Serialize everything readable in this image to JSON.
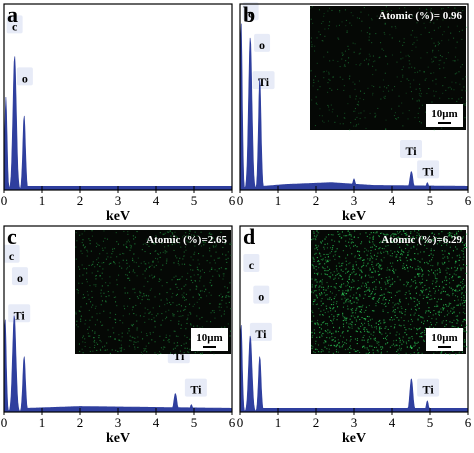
{
  "chart_data": [
    {
      "type": "area",
      "panel_label": "a",
      "xlabel": "keV",
      "xlim": [
        0,
        6
      ],
      "xticks": [
        "0",
        "1",
        "2",
        "3",
        "4",
        "5",
        "6"
      ],
      "peaks": [
        {
          "x": 0.05,
          "y": 0.5,
          "w": 0.06
        },
        {
          "x": 0.28,
          "y": 0.72,
          "w": 0.09
        },
        {
          "x": 0.53,
          "y": 0.4,
          "w": 0.07
        }
      ],
      "baseline": [
        [
          0.6,
          0.02
        ],
        [
          6.0,
          0.02
        ]
      ],
      "peak_labels": [
        {
          "text": "c",
          "x": 0.28,
          "y": 0.88
        },
        {
          "text": "o",
          "x": 0.55,
          "y": 0.6
        }
      ]
    },
    {
      "type": "area",
      "panel_label": "b",
      "xlabel": "keV",
      "xlim": [
        0,
        6
      ],
      "xticks": [
        "0",
        "1",
        "2",
        "3",
        "4",
        "5",
        "6"
      ],
      "peaks": [
        {
          "x": 0.03,
          "y": 0.9,
          "w": 0.06
        },
        {
          "x": 0.27,
          "y": 0.82,
          "w": 0.09
        },
        {
          "x": 0.52,
          "y": 0.6,
          "w": 0.07
        },
        {
          "x": 3.0,
          "y": 0.06,
          "w": 0.07
        },
        {
          "x": 4.51,
          "y": 0.1,
          "w": 0.08
        },
        {
          "x": 4.93,
          "y": 0.04,
          "w": 0.06
        }
      ],
      "baseline": [
        [
          0.6,
          0.02
        ],
        [
          1.2,
          0.03
        ],
        [
          2.4,
          0.04
        ],
        [
          3.5,
          0.025
        ],
        [
          6.0,
          0.02
        ]
      ],
      "peak_labels": [
        {
          "text": "c",
          "x": 0.28,
          "y": 0.95
        },
        {
          "text": "o",
          "x": 0.58,
          "y": 0.78
        },
        {
          "text": "Ti",
          "x": 0.62,
          "y": 0.58
        },
        {
          "text": "Ti",
          "x": 4.5,
          "y": 0.21
        },
        {
          "text": "Ti",
          "x": 4.95,
          "y": 0.1
        }
      ],
      "inset": {
        "title": "Atomic (%)= 0.96",
        "scalebar": "10μm",
        "density": 0.96
      }
    },
    {
      "type": "area",
      "panel_label": "c",
      "xlabel": "keV",
      "xlim": [
        0,
        6
      ],
      "xticks": [
        "0",
        "1",
        "2",
        "3",
        "4",
        "5",
        "6"
      ],
      "peaks": [
        {
          "x": 0.03,
          "y": 0.5,
          "w": 0.06
        },
        {
          "x": 0.27,
          "y": 0.52,
          "w": 0.09
        },
        {
          "x": 0.53,
          "y": 0.3,
          "w": 0.07
        },
        {
          "x": 4.51,
          "y": 0.1,
          "w": 0.08
        },
        {
          "x": 4.93,
          "y": 0.04,
          "w": 0.06
        }
      ],
      "baseline": [
        [
          0.6,
          0.02
        ],
        [
          2.0,
          0.03
        ],
        [
          6.0,
          0.02
        ]
      ],
      "peak_labels": [
        {
          "text": "c",
          "x": 0.2,
          "y": 0.84
        },
        {
          "text": "o",
          "x": 0.42,
          "y": 0.72
        },
        {
          "text": "Ti",
          "x": 0.4,
          "y": 0.52
        },
        {
          "text": "Ti",
          "x": 4.6,
          "y": 0.3
        },
        {
          "text": "Ti",
          "x": 5.05,
          "y": 0.12
        }
      ],
      "inset": {
        "title": "Atomic (%)=2.65",
        "scalebar": "10μm",
        "density": 2.65
      }
    },
    {
      "type": "area",
      "panel_label": "d",
      "xlabel": "keV",
      "xlim": [
        0,
        6
      ],
      "xticks": [
        "0",
        "1",
        "2",
        "3",
        "4",
        "5",
        "6"
      ],
      "peaks": [
        {
          "x": 0.03,
          "y": 0.47,
          "w": 0.06
        },
        {
          "x": 0.27,
          "y": 0.41,
          "w": 0.09
        },
        {
          "x": 0.52,
          "y": 0.3,
          "w": 0.07
        },
        {
          "x": 4.51,
          "y": 0.18,
          "w": 0.08
        },
        {
          "x": 4.93,
          "y": 0.06,
          "w": 0.06
        }
      ],
      "baseline": [
        [
          0.6,
          0.02
        ],
        [
          6.0,
          0.02
        ]
      ],
      "peak_labels": [
        {
          "text": "c",
          "x": 0.3,
          "y": 0.79
        },
        {
          "text": "o",
          "x": 0.56,
          "y": 0.62
        },
        {
          "text": "Ti",
          "x": 0.55,
          "y": 0.42
        },
        {
          "text": "Ti",
          "x": 4.45,
          "y": 0.39
        },
        {
          "text": "Ti",
          "x": 4.95,
          "y": 0.12
        }
      ],
      "inset": {
        "title": "Atomic (%)=6.29",
        "scalebar": "10μm",
        "density": 6.29
      }
    }
  ],
  "colors": {
    "spectrum": "#2f3f9e",
    "label_box": "#e7ebf7",
    "inset_bg": "#050805",
    "inset_dots": "#2ed25a",
    "axis": "#000000"
  }
}
